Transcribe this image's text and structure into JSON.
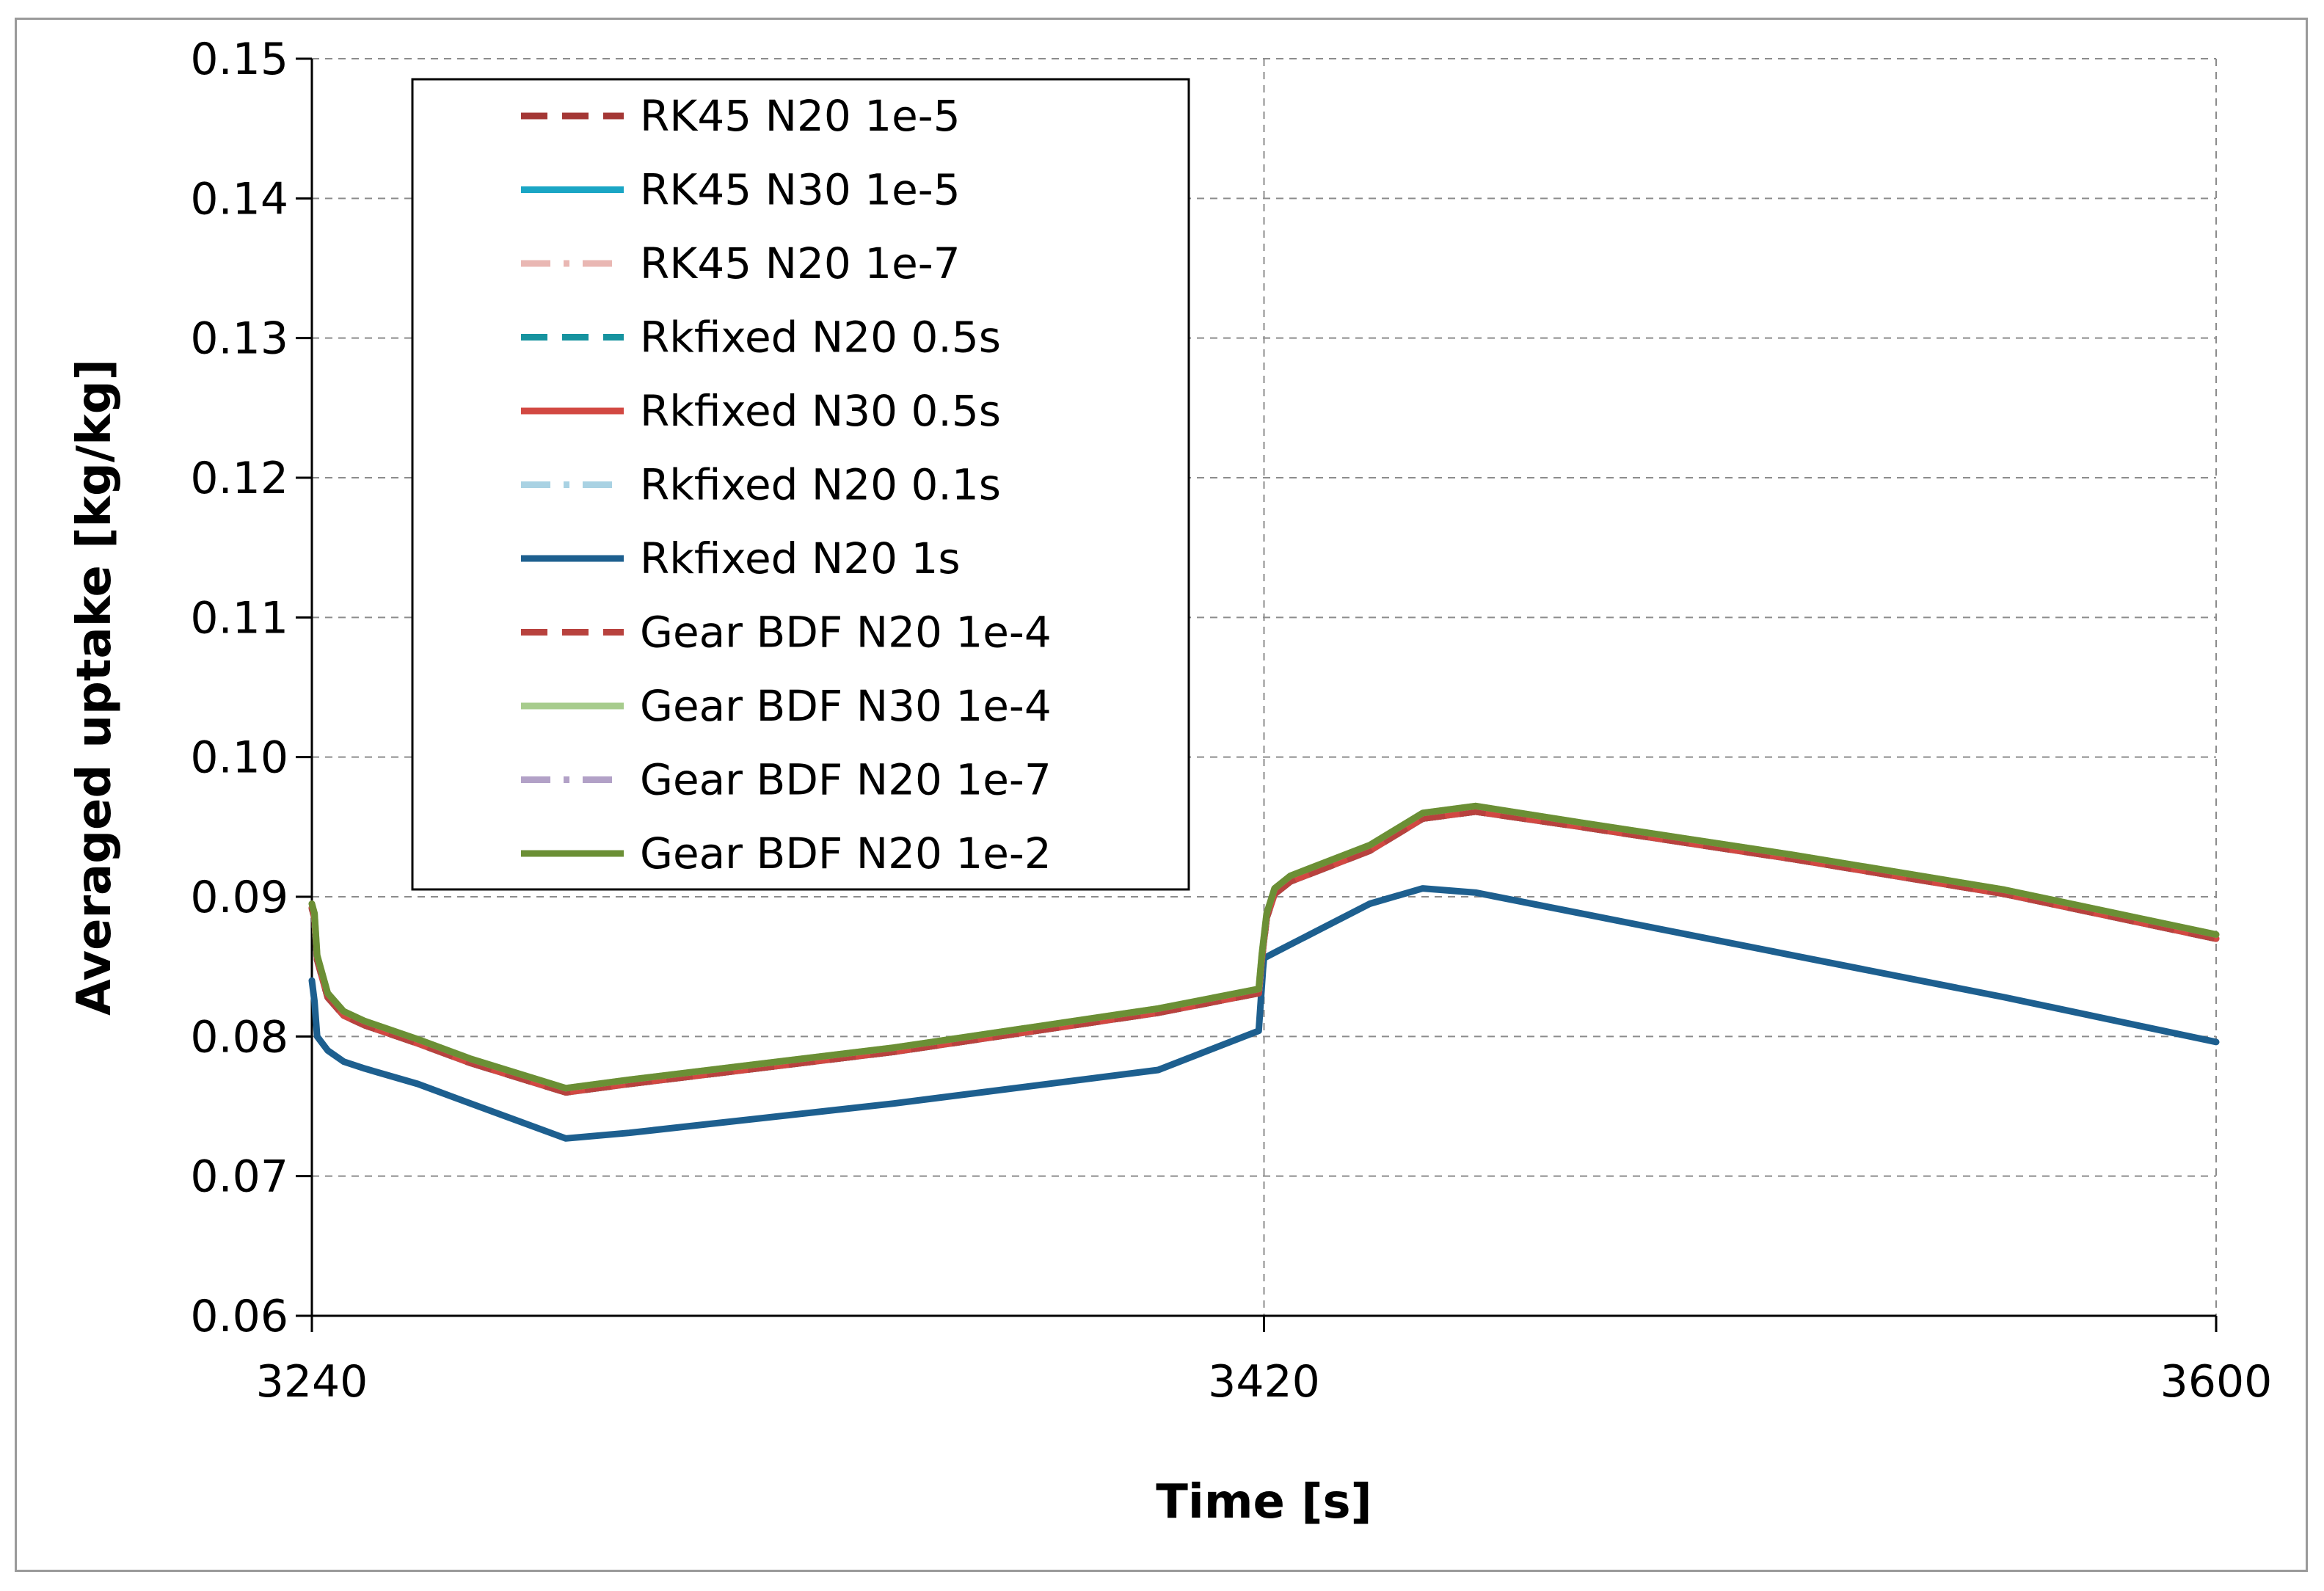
{
  "chart_data": {
    "type": "line",
    "title": "",
    "xlabel": "Time [s]",
    "ylabel": "Averaged uptake [kg/kg]",
    "xlim": [
      3240,
      3600
    ],
    "ylim": [
      0.06,
      0.15
    ],
    "x_ticks": [
      3240,
      3420,
      3600
    ],
    "x_tick_labels": [
      "3240",
      "3420",
      "3600"
    ],
    "y_ticks": [
      0.06,
      0.07,
      0.08,
      0.09,
      0.1,
      0.11,
      0.12,
      0.13,
      0.14,
      0.15
    ],
    "y_tick_labels": [
      "0.06",
      "0.07",
      "0.08",
      "0.09",
      "0.10",
      "0.11",
      "0.12",
      "0.13",
      "0.14",
      "0.15"
    ],
    "grid": true,
    "legend_position": "top-left",
    "series": [
      {
        "name": "RK45 N20 1e-5",
        "color": "#a43735",
        "dash": "dashed",
        "x": [
          3240,
          3240.5,
          3241,
          3243,
          3246,
          3250,
          3260,
          3270,
          3288,
          3300,
          3350,
          3400,
          3419,
          3419.6,
          3420.5,
          3422,
          3425,
          3440,
          3450,
          3460,
          3480,
          3520,
          3560,
          3600
        ],
        "y": [
          0.0892,
          0.0885,
          0.0855,
          0.0828,
          0.0815,
          0.0808,
          0.0795,
          0.0781,
          0.076,
          0.0766,
          0.0789,
          0.0817,
          0.0831,
          0.0856,
          0.0885,
          0.0902,
          0.0911,
          0.0933,
          0.0956,
          0.0961,
          0.095,
          0.0927,
          0.0902,
          0.087
        ]
      },
      {
        "name": "RK45 N30 1e-5",
        "color": "#1aa6c5",
        "dash": "solid",
        "x": [
          3240,
          3240.5,
          3241,
          3243,
          3246,
          3250,
          3260,
          3270,
          3288,
          3300,
          3350,
          3400,
          3419,
          3419.6,
          3420.5,
          3422,
          3425,
          3440,
          3450,
          3460,
          3480,
          3520,
          3560,
          3600
        ],
        "y": [
          0.0892,
          0.0885,
          0.0855,
          0.0828,
          0.0815,
          0.0808,
          0.0795,
          0.0781,
          0.076,
          0.0766,
          0.0789,
          0.0817,
          0.0831,
          0.0856,
          0.0885,
          0.0902,
          0.0911,
          0.0933,
          0.0956,
          0.0961,
          0.095,
          0.0927,
          0.0902,
          0.087
        ]
      },
      {
        "name": "RK45 N20 1e-7",
        "color": "#e9b7b3",
        "dash": "dashdot",
        "x": [
          3240,
          3240.5,
          3241,
          3243,
          3246,
          3250,
          3260,
          3270,
          3288,
          3300,
          3350,
          3400,
          3419,
          3419.6,
          3420.5,
          3422,
          3425,
          3440,
          3450,
          3460,
          3480,
          3520,
          3560,
          3600
        ],
        "y": [
          0.0892,
          0.0885,
          0.0855,
          0.0828,
          0.0815,
          0.0808,
          0.0795,
          0.0781,
          0.076,
          0.0766,
          0.0789,
          0.0817,
          0.0831,
          0.0856,
          0.0885,
          0.0902,
          0.0911,
          0.0933,
          0.0956,
          0.0961,
          0.095,
          0.0927,
          0.0902,
          0.087
        ]
      },
      {
        "name": "Rkfixed N20 0.5s",
        "color": "#16939f",
        "dash": "dashed",
        "x": [
          3240,
          3240.5,
          3241,
          3243,
          3246,
          3250,
          3260,
          3270,
          3288,
          3300,
          3350,
          3400,
          3419,
          3419.6,
          3420.5,
          3422,
          3425,
          3440,
          3450,
          3460,
          3480,
          3520,
          3560,
          3600
        ],
        "y": [
          0.0892,
          0.0885,
          0.0855,
          0.0828,
          0.0815,
          0.0808,
          0.0795,
          0.0781,
          0.076,
          0.0766,
          0.0789,
          0.0817,
          0.0831,
          0.0856,
          0.0885,
          0.0902,
          0.0911,
          0.0933,
          0.0956,
          0.0961,
          0.095,
          0.0927,
          0.0902,
          0.087
        ]
      },
      {
        "name": "Rkfixed N30 0.5s",
        "color": "#d24842",
        "dash": "solid",
        "x": [
          3240,
          3240.5,
          3241,
          3243,
          3246,
          3250,
          3260,
          3270,
          3288,
          3300,
          3350,
          3400,
          3419,
          3419.6,
          3420.5,
          3422,
          3425,
          3440,
          3450,
          3460,
          3480,
          3520,
          3560,
          3600
        ],
        "y": [
          0.0892,
          0.0885,
          0.0855,
          0.0828,
          0.0815,
          0.0808,
          0.0795,
          0.0781,
          0.076,
          0.0766,
          0.0789,
          0.0817,
          0.0831,
          0.0856,
          0.0885,
          0.0902,
          0.0911,
          0.0933,
          0.0956,
          0.0961,
          0.095,
          0.0927,
          0.0902,
          0.087
        ]
      },
      {
        "name": "Rkfixed N20 0.1s",
        "color": "#a9d2e3",
        "dash": "dashdot",
        "x": [
          3240,
          3240.5,
          3241,
          3243,
          3246,
          3250,
          3260,
          3270,
          3288,
          3300,
          3350,
          3400,
          3419,
          3419.6,
          3420.5,
          3422,
          3425,
          3440,
          3450,
          3460,
          3480,
          3520,
          3560,
          3600
        ],
        "y": [
          0.0892,
          0.0885,
          0.0855,
          0.0828,
          0.0815,
          0.0808,
          0.0795,
          0.0781,
          0.076,
          0.0766,
          0.0789,
          0.0817,
          0.0831,
          0.0856,
          0.0885,
          0.0902,
          0.0911,
          0.0933,
          0.0956,
          0.0961,
          0.095,
          0.0927,
          0.0902,
          0.087
        ]
      },
      {
        "name": "Rkfixed N20 1s",
        "color": "#1d5f8f",
        "dash": "solid",
        "x": [
          3240,
          3240.5,
          3241,
          3243,
          3246,
          3250,
          3260,
          3270,
          3288,
          3300,
          3350,
          3400,
          3419,
          3419.8,
          3420,
          3422,
          3440,
          3450,
          3460,
          3480,
          3520,
          3560,
          3600
        ],
        "y": [
          0.084,
          0.0825,
          0.08,
          0.079,
          0.0782,
          0.0777,
          0.0766,
          0.0752,
          0.0727,
          0.0731,
          0.0752,
          0.0776,
          0.0804,
          0.0848,
          0.0856,
          0.086,
          0.0895,
          0.0906,
          0.0903,
          0.0888,
          0.0858,
          0.0828,
          0.0796
        ]
      },
      {
        "name": "Gear BDF N20 1e-4",
        "color": "#b8423e",
        "dash": "dashed",
        "x": [
          3240,
          3240.5,
          3241,
          3243,
          3246,
          3250,
          3260,
          3270,
          3288,
          3300,
          3350,
          3400,
          3419,
          3419.6,
          3420.5,
          3422,
          3425,
          3440,
          3450,
          3460,
          3480,
          3520,
          3560,
          3600
        ],
        "y": [
          0.0892,
          0.0885,
          0.0855,
          0.0828,
          0.0815,
          0.0808,
          0.0795,
          0.0781,
          0.076,
          0.0766,
          0.0789,
          0.0817,
          0.0831,
          0.0856,
          0.0885,
          0.0902,
          0.0911,
          0.0933,
          0.0956,
          0.0961,
          0.095,
          0.0927,
          0.0902,
          0.087
        ]
      },
      {
        "name": "Gear BDF N30 1e-4",
        "color": "#a7cc8d",
        "dash": "solid",
        "x": [
          3240,
          3240.5,
          3241,
          3243,
          3246,
          3250,
          3260,
          3270,
          3288,
          3300,
          3350,
          3400,
          3419,
          3419.6,
          3420.5,
          3422,
          3425,
          3440,
          3450,
          3460,
          3480,
          3520,
          3560,
          3600
        ],
        "y": [
          0.0895,
          0.0888,
          0.0858,
          0.0831,
          0.0818,
          0.0811,
          0.0798,
          0.0784,
          0.0763,
          0.0769,
          0.0792,
          0.082,
          0.0834,
          0.0859,
          0.0888,
          0.0906,
          0.0915,
          0.0937,
          0.096,
          0.0965,
          0.0953,
          0.093,
          0.0905,
          0.0873
        ]
      },
      {
        "name": "Gear BDF N20 1e-7",
        "color": "#b2a1c7",
        "dash": "dashdot",
        "x": [
          3240,
          3240.5,
          3241,
          3243,
          3246,
          3250,
          3260,
          3270,
          3288,
          3300,
          3350,
          3400,
          3419,
          3419.6,
          3420.5,
          3422,
          3425,
          3440,
          3450,
          3460,
          3480,
          3520,
          3560,
          3600
        ],
        "y": [
          0.0892,
          0.0885,
          0.0855,
          0.0828,
          0.0815,
          0.0808,
          0.0795,
          0.0781,
          0.076,
          0.0766,
          0.0789,
          0.0817,
          0.0831,
          0.0856,
          0.0885,
          0.0902,
          0.0911,
          0.0933,
          0.0956,
          0.0961,
          0.095,
          0.0927,
          0.0902,
          0.087
        ]
      },
      {
        "name": "Gear BDF N20 1e-2",
        "color": "#6b8f35",
        "dash": "solid",
        "x": [
          3240,
          3240.5,
          3241,
          3243,
          3246,
          3250,
          3260,
          3270,
          3288,
          3300,
          3350,
          3400,
          3419,
          3419.6,
          3420.5,
          3422,
          3425,
          3440,
          3450,
          3460,
          3480,
          3520,
          3560,
          3600
        ],
        "y": [
          0.0895,
          0.0888,
          0.0858,
          0.0831,
          0.0818,
          0.0811,
          0.0798,
          0.0784,
          0.0763,
          0.0769,
          0.0792,
          0.082,
          0.0834,
          0.0859,
          0.0888,
          0.0906,
          0.0915,
          0.0937,
          0.096,
          0.0965,
          0.0953,
          0.093,
          0.0905,
          0.0873
        ]
      }
    ]
  }
}
